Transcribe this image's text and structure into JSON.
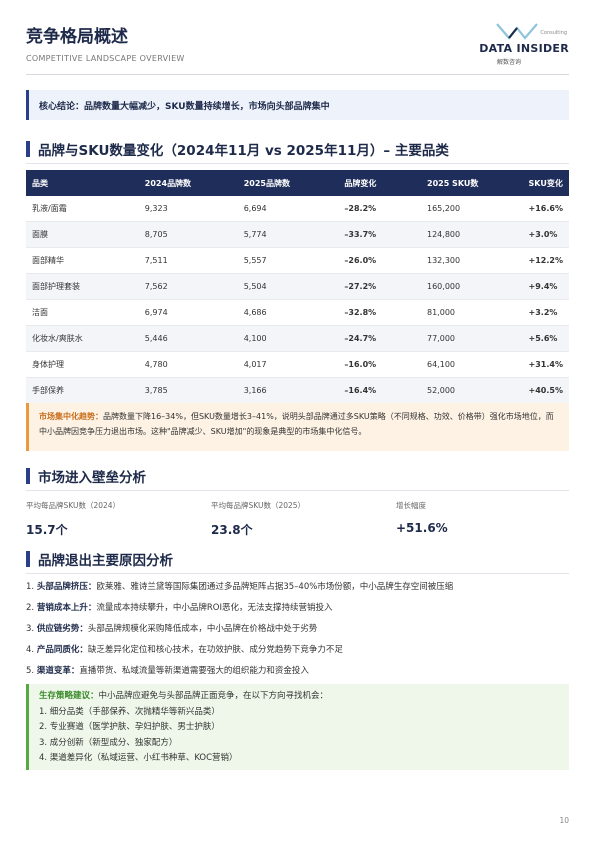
{
  "header": {
    "title": "竞争格局概述",
    "subtitle": "COMPETITIVE LANDSCAPE OVERVIEW",
    "logo_small": "Consulting",
    "logo_text": "DATA INSIDER",
    "logo_sub": "解数咨询"
  },
  "conclusion": "核心结论：品牌数量大幅减少，SKU数量持续增长，市场向头部品牌集中",
  "section1_title": "品牌与SKU数量变化（2024年11月 vs 2025年11月）– 主要品类",
  "table": {
    "headers": [
      "品类",
      "2024品牌数",
      "2025品牌数",
      "品牌变化",
      "2025 SKU数",
      "SKU变化"
    ],
    "rows": [
      [
        "乳液/面霜",
        "9,323",
        "6,694",
        "–28.2%",
        "165,200",
        "+16.6%"
      ],
      [
        "面膜",
        "8,705",
        "5,774",
        "–33.7%",
        "124,800",
        "+3.0%"
      ],
      [
        "面部精华",
        "7,511",
        "5,557",
        "–26.0%",
        "132,300",
        "+12.2%"
      ],
      [
        "面部护理套装",
        "7,562",
        "5,504",
        "–27.2%",
        "160,000",
        "+9.4%"
      ],
      [
        "洁面",
        "6,974",
        "4,686",
        "–32.8%",
        "81,000",
        "+3.2%"
      ],
      [
        "化妆水/爽肤水",
        "5,446",
        "4,100",
        "–24.7%",
        "77,000",
        "+5.6%"
      ],
      [
        "身体护理",
        "4,780",
        "4,017",
        "–16.0%",
        "64,100",
        "+31.4%"
      ],
      [
        "手部保养",
        "3,785",
        "3,166",
        "–16.4%",
        "52,000",
        "+40.5%"
      ]
    ]
  },
  "trend": {
    "lead": "市场集中化趋势：",
    "text": "品牌数量下降16–34%，但SKU数量增长3–41%，说明头部品牌通过多SKU策略（不同规格、功效、价格带）强化市场地位，而中小品牌因竞争压力退出市场。这种\"品牌减少、SKU增加\"的现象是典型的市场集中化信号。"
  },
  "section2_title": "市场进入壁垒分析",
  "metrics": [
    {
      "label": "平均每品牌SKU数（2024）",
      "value": "15.7个"
    },
    {
      "label": "平均每品牌SKU数（2025）",
      "value": "23.8个"
    },
    {
      "label": "增长幅度",
      "value": "+51.6%"
    }
  ],
  "section3_title": "品牌退出主要原因分析",
  "reasons": [
    {
      "num": "1.",
      "title": "头部品牌挤压：",
      "text": "欧莱雅、雅诗兰黛等国际集团通过多品牌矩阵占据35–40%市场份额，中小品牌生存空间被压缩"
    },
    {
      "num": "2.",
      "title": "营销成本上升：",
      "text": "流量成本持续攀升，中小品牌ROI恶化，无法支撑持续营销投入"
    },
    {
      "num": "3.",
      "title": "供应链劣势：",
      "text": "头部品牌规模化采购降低成本，中小品牌在价格战中处于劣势"
    },
    {
      "num": "4.",
      "title": "产品同质化：",
      "text": "缺乏差异化定位和核心技术，在功效护肤、成分党趋势下竞争力不足"
    },
    {
      "num": "5.",
      "title": "渠道变革：",
      "text": "直播带货、私域流量等新渠道需要强大的组织能力和资金投入"
    }
  ],
  "strategy": {
    "lead": "生存策略建议：",
    "intro": "中小品牌应避免与头部品牌正面竞争，在以下方向寻找机会：",
    "items": [
      "1. 细分品类（手部保养、次抛精华等新兴品类）",
      "2. 专业赛道（医学护肤、孕妇护肤、男士护肤）",
      "3. 成分创新（新型成分、独家配方）",
      "4. 渠道差异化（私域运营、小红书种草、KOC营销）"
    ]
  },
  "page_number": "10",
  "colors": {
    "navy": "#1f2d5a",
    "accent": "#2a3e8a",
    "negative": "#d33b2c",
    "positive": "#27963d",
    "orange": "#e99a3c",
    "green": "#57a843"
  }
}
